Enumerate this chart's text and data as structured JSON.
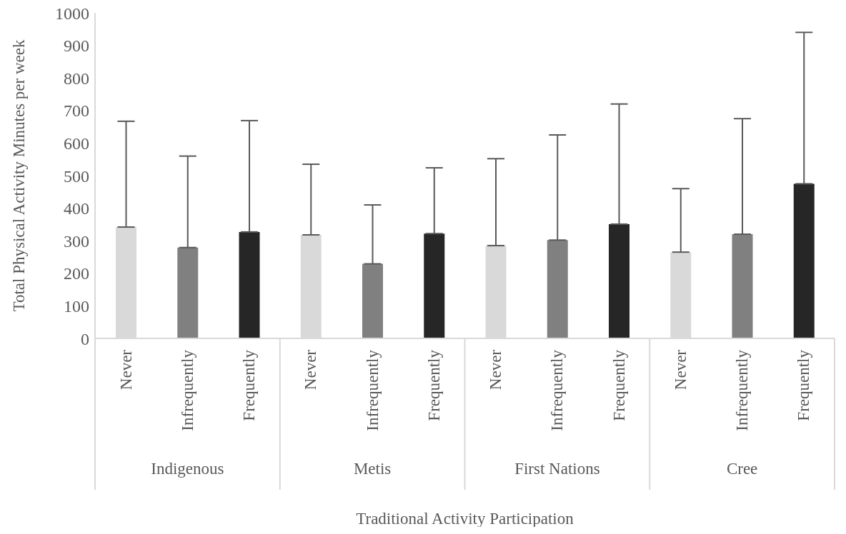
{
  "chart_data": {
    "type": "bar",
    "xlabel": "Traditional Activity Participation",
    "ylabel": "Total Physical Activity Minutes per week",
    "categories": [
      "Never",
      "Infrequently",
      "Frequently",
      "Never",
      "Infrequently",
      "Frequently",
      "Never",
      "Infrequently",
      "Frequently",
      "Never",
      "Infrequently",
      "Frequently"
    ],
    "values": [
      342,
      279,
      327,
      318,
      229,
      322,
      285,
      302,
      351,
      265,
      320,
      475
    ],
    "colors": [
      "#d9d9d9",
      "#808080",
      "#262626",
      "#d9d9d9",
      "#808080",
      "#262626",
      "#d9d9d9",
      "#808080",
      "#262626",
      "#d9d9d9",
      "#808080",
      "#262626"
    ],
    "errors": [
      [
        342,
        667
      ],
      [
        279,
        560
      ],
      [
        327,
        669
      ],
      [
        318,
        535
      ],
      [
        229,
        410
      ],
      [
        322,
        524
      ],
      [
        285,
        552
      ],
      [
        302,
        625
      ],
      [
        351,
        720
      ],
      [
        265,
        460
      ],
      [
        320,
        675
      ],
      [
        475,
        940
      ]
    ],
    "annotations": [
      "Indigenous",
      "Metis",
      "First Nations",
      "Cree"
    ],
    "ylim": [
      0,
      1000
    ],
    "yticks": [
      0,
      100,
      200,
      300,
      400,
      500,
      600,
      700,
      800,
      900,
      1000
    ],
    "grid": false,
    "legend": false
  }
}
